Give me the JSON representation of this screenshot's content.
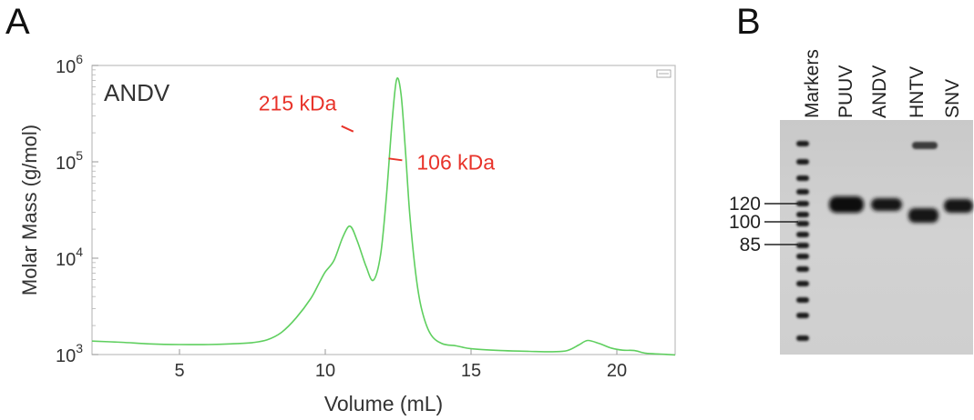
{
  "panels": {
    "a_letter": "A",
    "b_letter": "B"
  },
  "chart_data": {
    "type": "line",
    "title": "",
    "inset_label": "ANDV",
    "xlabel": "Volume (mL)",
    "ylabel": "Molar Mass (g/mol)",
    "xlim": [
      2,
      22
    ],
    "ylim": [
      1000,
      1000000
    ],
    "yscale": "log",
    "xticks": [
      5,
      10,
      15,
      20
    ],
    "yticks": [
      {
        "value": 1000,
        "base": "10",
        "exp": "3"
      },
      {
        "value": 10000,
        "base": "10",
        "exp": "4"
      },
      {
        "value": 100000,
        "base": "10",
        "exp": "5"
      },
      {
        "value": 1000000,
        "base": "10",
        "exp": "6"
      }
    ],
    "grid": false,
    "line_color": "#5fcf5f",
    "annotation_color": "#e8332a",
    "series": [
      {
        "x": [
          2.0,
          3.0,
          4.0,
          5.0,
          6.0,
          7.0,
          7.5,
          8.0,
          8.5,
          9.0,
          9.5,
          9.8,
          10.0,
          10.3,
          10.6,
          10.85,
          11.1,
          11.4,
          11.65,
          11.9,
          12.1,
          12.3,
          12.45,
          12.6,
          12.75,
          12.9,
          13.1,
          13.3,
          13.6,
          14.0,
          14.5,
          15.0,
          16.0,
          17.0,
          17.8,
          18.3,
          18.7,
          19.0,
          19.4,
          19.8,
          20.2,
          20.6,
          21.0,
          21.5,
          22.0
        ],
        "y": [
          1380,
          1340,
          1290,
          1270,
          1270,
          1300,
          1330,
          1420,
          1700,
          2400,
          3800,
          5600,
          7200,
          9500,
          16500,
          21500,
          15000,
          8200,
          5900,
          11000,
          45000,
          280000,
          720000,
          500000,
          130000,
          28000,
          7000,
          3000,
          1650,
          1300,
          1230,
          1150,
          1100,
          1080,
          1070,
          1100,
          1260,
          1400,
          1300,
          1170,
          1110,
          1100,
          1030,
          1010,
          990
        ]
      }
    ],
    "annotations": [
      {
        "text": "215 kDa",
        "x": 10.9,
        "y": 220000
      },
      {
        "text": "106 kDa",
        "x": 12.2,
        "y": 106000
      }
    ]
  },
  "gel": {
    "lanes": [
      "Markers",
      "PUUV",
      "ANDV",
      "HNTV",
      "SNV"
    ],
    "marker_labels": [
      "120",
      "100",
      "85"
    ]
  }
}
